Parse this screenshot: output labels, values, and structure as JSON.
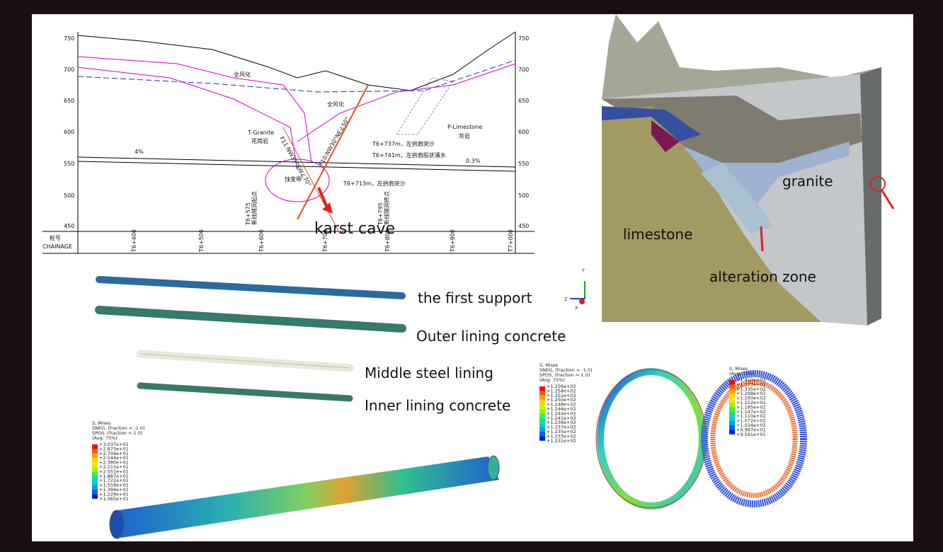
{
  "section_profile": {
    "elevations": [
      750,
      700,
      650,
      600,
      550,
      500,
      450
    ],
    "chainages": [
      "T6+400",
      "T6+500",
      "T6+600",
      "T6+700",
      "T6+800",
      "T6+900",
      "T7+000"
    ],
    "chainage_header": [
      "桩号",
      "CHAINAGE"
    ],
    "weathered": [
      "全风化",
      "全风化"
    ],
    "granite": [
      "T-Granite",
      "花岗岩"
    ],
    "limestone": [
      "P-Limestone",
      "灰岩"
    ],
    "slopes": [
      "4%",
      "0.3%"
    ],
    "notes": [
      "T6+737m，左拱肩突沙",
      "T6+741m，左拱肩股状涌水",
      "T6+713m，左拱肩突沙"
    ],
    "alteration": "蚀变带",
    "faults": [
      "F11:NW35°SW∠70°",
      "F10:NW30°NE∠50°"
    ],
    "stations": [
      "T6+575",
      "新线隧洞起点",
      "T6+795",
      "新线隧洞终点"
    ],
    "karst": "karst cave"
  },
  "model_3d": {
    "labels": [
      "granite",
      "limestone",
      "alteration zone"
    ]
  },
  "lining": {
    "labels": [
      "the first support",
      "Outer lining concrete",
      "Middle steel lining",
      "Inner lining concrete"
    ],
    "axes": [
      "Y",
      "Z",
      "X"
    ]
  },
  "legends": [
    {
      "title": [
        "S, Mises",
        "SNEG, (fraction = -1.0)",
        "SPOS, (fraction = 1.0)",
        "(Avg: 75%)"
      ],
      "values": [
        "+3.037e+01",
        "+2.873e+01",
        "+2.709e+01",
        "+2.544e+01",
        "+2.380e+01",
        "+2.215e+01",
        "+2.051e+01",
        "+1.887e+01",
        "+1.722e+01",
        "+1.558e+01",
        "+1.394e+01",
        "+1.229e+01",
        "+1.065e+01"
      ]
    },
    {
      "title": [
        "S, Mises",
        "SNEG, (fraction = -1.0)",
        "SPOS, (fraction = 1.0)",
        "(Avg: 75%)"
      ],
      "values": [
        "+1.256e+02",
        "+1.254e+02",
        "+1.252e+02",
        "+1.250e+02",
        "+1.248e+02",
        "+1.246e+02",
        "+1.244e+02",
        "+1.241e+02",
        "+1.239e+02",
        "+1.237e+02",
        "+1.235e+02",
        "+1.233e+02",
        "+1.231e+02"
      ]
    },
    {
      "title": [
        "S, Mises",
        "(Avg: 75%)"
      ],
      "values": [
        "+1.410e+02",
        "+1.373e+02",
        "+1.335e+02",
        "+1.298e+02",
        "+1.260e+02",
        "+1.222e+02",
        "+1.185e+02",
        "+1.147e+02",
        "+1.110e+02",
        "+1.072e+02",
        "+1.034e+02",
        "+9.967e+01",
        "+9.591e+01"
      ]
    }
  ]
}
